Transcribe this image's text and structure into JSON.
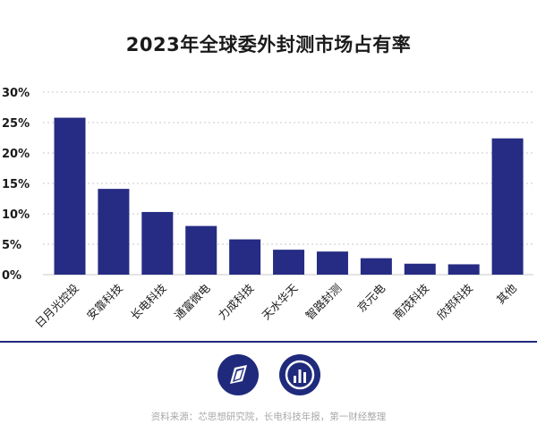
{
  "chart_data": {
    "type": "bar",
    "title": "2023年全球委外封测市场占有率",
    "categories": [
      "日月光控投",
      "安靠科技",
      "长电科技",
      "通富微电",
      "力成科技",
      "天水华天",
      "智路封测",
      "京元电",
      "南茂科技",
      "欣邦科技",
      "其他"
    ],
    "values": [
      25.8,
      14.1,
      10.3,
      8.0,
      5.8,
      4.1,
      3.8,
      2.7,
      1.8,
      1.7,
      22.4
    ],
    "ylim": [
      0,
      30
    ],
    "yticks": [
      "0%",
      "5%",
      "10%",
      "15%",
      "20%",
      "25%",
      "30%"
    ],
    "xlabel": "",
    "ylabel": "",
    "grid": true,
    "bar_color": "#262c83"
  },
  "footer": {
    "source": "资料来源：芯思想研究院，长电科技年报，第一财经整理"
  },
  "colors": {
    "divider": "#1f2a7c",
    "logo": "#1f2a7c"
  }
}
